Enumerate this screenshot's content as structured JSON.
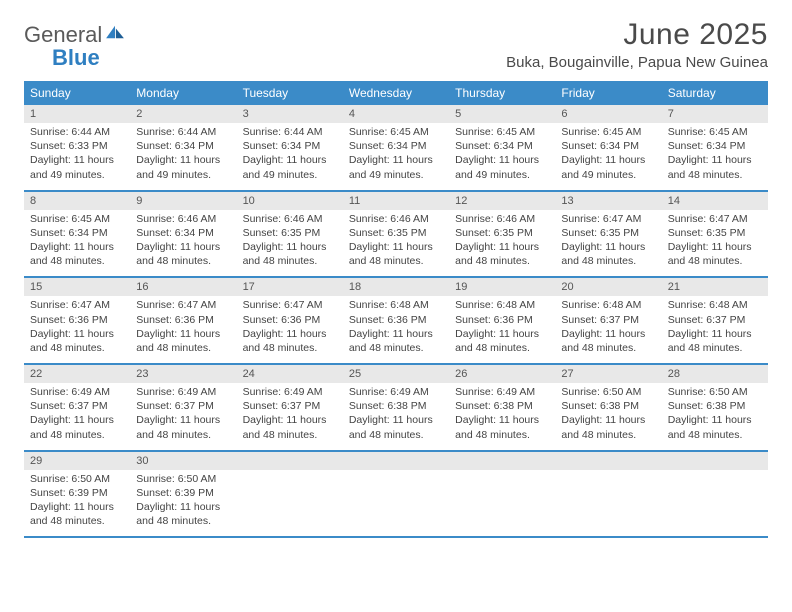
{
  "logo": {
    "text1": "General",
    "text2": "Blue"
  },
  "title": "June 2025",
  "location": "Buka, Bougainville, Papua New Guinea",
  "colors": {
    "header_bg": "#3b8bc8",
    "header_text": "#ffffff",
    "daynum_bg": "#e8e8e8",
    "divider": "#3b8bc8",
    "logo_gray": "#5a5a5a",
    "logo_blue": "#2f7fc1",
    "body_text": "#444444"
  },
  "day_names": [
    "Sunday",
    "Monday",
    "Tuesday",
    "Wednesday",
    "Thursday",
    "Friday",
    "Saturday"
  ],
  "weeks": [
    {
      "nums": [
        "1",
        "2",
        "3",
        "4",
        "5",
        "6",
        "7"
      ],
      "cells": [
        {
          "sunrise": "Sunrise: 6:44 AM",
          "sunset": "Sunset: 6:33 PM",
          "day1": "Daylight: 11 hours",
          "day2": "and 49 minutes."
        },
        {
          "sunrise": "Sunrise: 6:44 AM",
          "sunset": "Sunset: 6:34 PM",
          "day1": "Daylight: 11 hours",
          "day2": "and 49 minutes."
        },
        {
          "sunrise": "Sunrise: 6:44 AM",
          "sunset": "Sunset: 6:34 PM",
          "day1": "Daylight: 11 hours",
          "day2": "and 49 minutes."
        },
        {
          "sunrise": "Sunrise: 6:45 AM",
          "sunset": "Sunset: 6:34 PM",
          "day1": "Daylight: 11 hours",
          "day2": "and 49 minutes."
        },
        {
          "sunrise": "Sunrise: 6:45 AM",
          "sunset": "Sunset: 6:34 PM",
          "day1": "Daylight: 11 hours",
          "day2": "and 49 minutes."
        },
        {
          "sunrise": "Sunrise: 6:45 AM",
          "sunset": "Sunset: 6:34 PM",
          "day1": "Daylight: 11 hours",
          "day2": "and 49 minutes."
        },
        {
          "sunrise": "Sunrise: 6:45 AM",
          "sunset": "Sunset: 6:34 PM",
          "day1": "Daylight: 11 hours",
          "day2": "and 48 minutes."
        }
      ]
    },
    {
      "nums": [
        "8",
        "9",
        "10",
        "11",
        "12",
        "13",
        "14"
      ],
      "cells": [
        {
          "sunrise": "Sunrise: 6:45 AM",
          "sunset": "Sunset: 6:34 PM",
          "day1": "Daylight: 11 hours",
          "day2": "and 48 minutes."
        },
        {
          "sunrise": "Sunrise: 6:46 AM",
          "sunset": "Sunset: 6:34 PM",
          "day1": "Daylight: 11 hours",
          "day2": "and 48 minutes."
        },
        {
          "sunrise": "Sunrise: 6:46 AM",
          "sunset": "Sunset: 6:35 PM",
          "day1": "Daylight: 11 hours",
          "day2": "and 48 minutes."
        },
        {
          "sunrise": "Sunrise: 6:46 AM",
          "sunset": "Sunset: 6:35 PM",
          "day1": "Daylight: 11 hours",
          "day2": "and 48 minutes."
        },
        {
          "sunrise": "Sunrise: 6:46 AM",
          "sunset": "Sunset: 6:35 PM",
          "day1": "Daylight: 11 hours",
          "day2": "and 48 minutes."
        },
        {
          "sunrise": "Sunrise: 6:47 AM",
          "sunset": "Sunset: 6:35 PM",
          "day1": "Daylight: 11 hours",
          "day2": "and 48 minutes."
        },
        {
          "sunrise": "Sunrise: 6:47 AM",
          "sunset": "Sunset: 6:35 PM",
          "day1": "Daylight: 11 hours",
          "day2": "and 48 minutes."
        }
      ]
    },
    {
      "nums": [
        "15",
        "16",
        "17",
        "18",
        "19",
        "20",
        "21"
      ],
      "cells": [
        {
          "sunrise": "Sunrise: 6:47 AM",
          "sunset": "Sunset: 6:36 PM",
          "day1": "Daylight: 11 hours",
          "day2": "and 48 minutes."
        },
        {
          "sunrise": "Sunrise: 6:47 AM",
          "sunset": "Sunset: 6:36 PM",
          "day1": "Daylight: 11 hours",
          "day2": "and 48 minutes."
        },
        {
          "sunrise": "Sunrise: 6:47 AM",
          "sunset": "Sunset: 6:36 PM",
          "day1": "Daylight: 11 hours",
          "day2": "and 48 minutes."
        },
        {
          "sunrise": "Sunrise: 6:48 AM",
          "sunset": "Sunset: 6:36 PM",
          "day1": "Daylight: 11 hours",
          "day2": "and 48 minutes."
        },
        {
          "sunrise": "Sunrise: 6:48 AM",
          "sunset": "Sunset: 6:36 PM",
          "day1": "Daylight: 11 hours",
          "day2": "and 48 minutes."
        },
        {
          "sunrise": "Sunrise: 6:48 AM",
          "sunset": "Sunset: 6:37 PM",
          "day1": "Daylight: 11 hours",
          "day2": "and 48 minutes."
        },
        {
          "sunrise": "Sunrise: 6:48 AM",
          "sunset": "Sunset: 6:37 PM",
          "day1": "Daylight: 11 hours",
          "day2": "and 48 minutes."
        }
      ]
    },
    {
      "nums": [
        "22",
        "23",
        "24",
        "25",
        "26",
        "27",
        "28"
      ],
      "cells": [
        {
          "sunrise": "Sunrise: 6:49 AM",
          "sunset": "Sunset: 6:37 PM",
          "day1": "Daylight: 11 hours",
          "day2": "and 48 minutes."
        },
        {
          "sunrise": "Sunrise: 6:49 AM",
          "sunset": "Sunset: 6:37 PM",
          "day1": "Daylight: 11 hours",
          "day2": "and 48 minutes."
        },
        {
          "sunrise": "Sunrise: 6:49 AM",
          "sunset": "Sunset: 6:37 PM",
          "day1": "Daylight: 11 hours",
          "day2": "and 48 minutes."
        },
        {
          "sunrise": "Sunrise: 6:49 AM",
          "sunset": "Sunset: 6:38 PM",
          "day1": "Daylight: 11 hours",
          "day2": "and 48 minutes."
        },
        {
          "sunrise": "Sunrise: 6:49 AM",
          "sunset": "Sunset: 6:38 PM",
          "day1": "Daylight: 11 hours",
          "day2": "and 48 minutes."
        },
        {
          "sunrise": "Sunrise: 6:50 AM",
          "sunset": "Sunset: 6:38 PM",
          "day1": "Daylight: 11 hours",
          "day2": "and 48 minutes."
        },
        {
          "sunrise": "Sunrise: 6:50 AM",
          "sunset": "Sunset: 6:38 PM",
          "day1": "Daylight: 11 hours",
          "day2": "and 48 minutes."
        }
      ]
    },
    {
      "nums": [
        "29",
        "30",
        "",
        "",
        "",
        "",
        ""
      ],
      "cells": [
        {
          "sunrise": "Sunrise: 6:50 AM",
          "sunset": "Sunset: 6:39 PM",
          "day1": "Daylight: 11 hours",
          "day2": "and 48 minutes."
        },
        {
          "sunrise": "Sunrise: 6:50 AM",
          "sunset": "Sunset: 6:39 PM",
          "day1": "Daylight: 11 hours",
          "day2": "and 48 minutes."
        },
        {},
        {},
        {},
        {},
        {}
      ]
    }
  ]
}
